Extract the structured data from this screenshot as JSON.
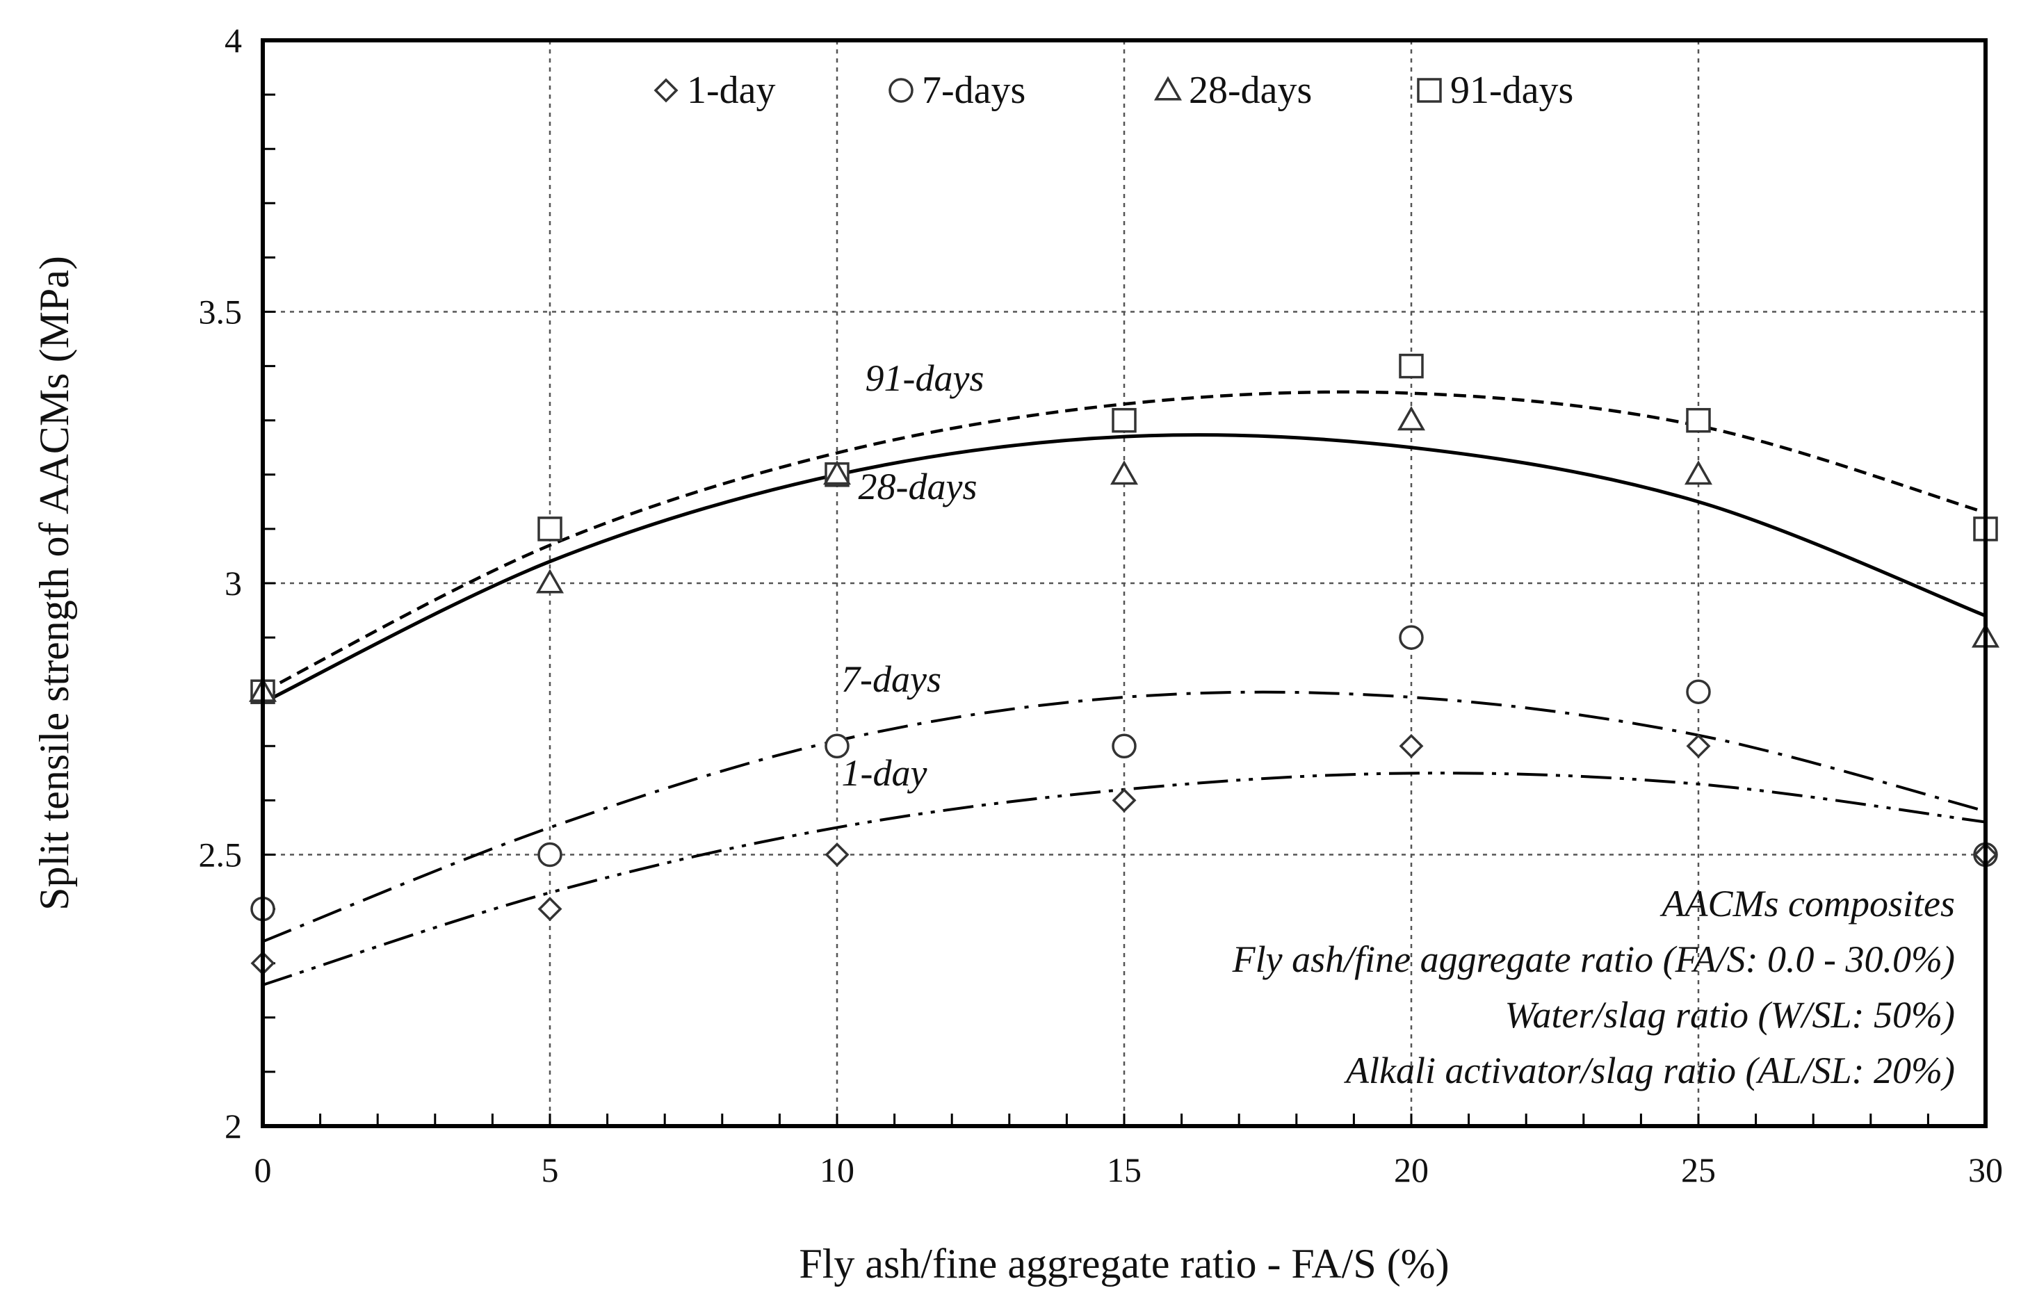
{
  "chart_data": {
    "type": "scatter",
    "xlabel": "Fly ash/fine aggregate ratio - FA/S (%)",
    "ylabel": "Split tensile strength of AACMs  (MPa)",
    "xlim": [
      0,
      30
    ],
    "ylim": [
      2,
      4
    ],
    "x_ticks": [
      0,
      5,
      10,
      15,
      20,
      25,
      30
    ],
    "y_ticks": [
      2,
      2.5,
      3,
      3.5,
      4
    ],
    "y_tick_labels": [
      "2",
      "2.5",
      "3",
      "3.5",
      "4"
    ],
    "grid": true,
    "legend_placement": "top",
    "x": [
      0,
      5,
      10,
      15,
      20,
      25,
      30
    ],
    "series": [
      {
        "name": "1-day",
        "marker": "diamond",
        "values": [
          2.3,
          2.4,
          2.5,
          2.6,
          2.7,
          2.7,
          2.5
        ],
        "trend_label": "1-day",
        "trend_style": "dash-dot-dot",
        "trend_points": [
          [
            0,
            2.26
          ],
          [
            5,
            2.43
          ],
          [
            10,
            2.55
          ],
          [
            15,
            2.62
          ],
          [
            20,
            2.65
          ],
          [
            25,
            2.63
          ],
          [
            30,
            2.56
          ]
        ]
      },
      {
        "name": "7-days",
        "marker": "circle",
        "values": [
          2.4,
          2.5,
          2.7,
          2.7,
          2.9,
          2.8,
          2.5
        ],
        "trend_label": "7-days",
        "trend_style": "dash-dot",
        "trend_points": [
          [
            0,
            2.34
          ],
          [
            5,
            2.55
          ],
          [
            10,
            2.71
          ],
          [
            15,
            2.79
          ],
          [
            20,
            2.79
          ],
          [
            25,
            2.72
          ],
          [
            30,
            2.58
          ]
        ]
      },
      {
        "name": "28-days",
        "marker": "triangle",
        "values": [
          2.8,
          3.0,
          3.2,
          3.2,
          3.3,
          3.2,
          2.9
        ],
        "trend_label": "28-days",
        "trend_style": "solid",
        "trend_points": [
          [
            0,
            2.78
          ],
          [
            5,
            3.04
          ],
          [
            10,
            3.2
          ],
          [
            15,
            3.27
          ],
          [
            20,
            3.25
          ],
          [
            25,
            3.15
          ],
          [
            30,
            2.94
          ]
        ]
      },
      {
        "name": "91-days",
        "marker": "square",
        "values": [
          2.8,
          3.1,
          3.2,
          3.3,
          3.4,
          3.3,
          3.1
        ],
        "trend_label": "91-days",
        "trend_style": "dashed",
        "trend_points": [
          [
            0,
            2.8
          ],
          [
            5,
            3.07
          ],
          [
            10,
            3.24
          ],
          [
            15,
            3.33
          ],
          [
            20,
            3.35
          ],
          [
            25,
            3.29
          ],
          [
            30,
            3.13
          ]
        ]
      }
    ],
    "annotations": [
      "AACMs  composites",
      "Fly ash/fine aggregate ratio (FA/S:  0.0 - 30.0%)",
      "Water/slag ratio (W/SL:  50%)",
      "Alkali activator/slag ratio (AL/SL:  20%)"
    ]
  }
}
